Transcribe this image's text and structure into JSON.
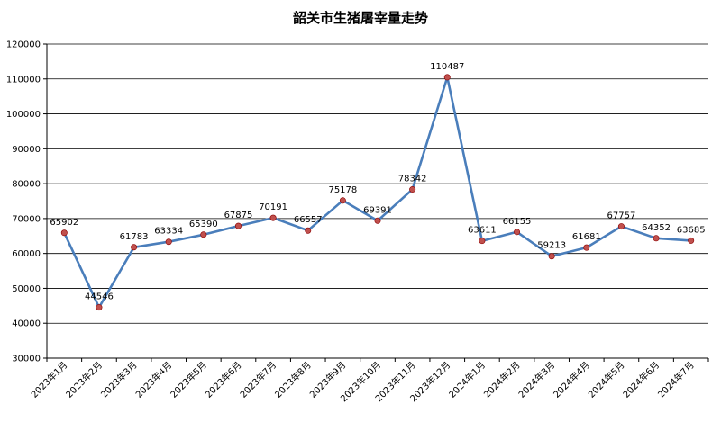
{
  "chart_data": {
    "type": "line",
    "title": "韶关市生猪屠宰量走势",
    "categories": [
      "2023年1月",
      "2023年2月",
      "2023年3月",
      "2023年4月",
      "2023年5月",
      "2023年6月",
      "2023年7月",
      "2023年8月",
      "2023年9月",
      "2023年10月",
      "2023年11月",
      "2023年12月",
      "2024年1月",
      "2024年2月",
      "2024年3月",
      "2024年4月",
      "2024年5月",
      "2024年6月",
      "2024年7月"
    ],
    "values": [
      65902,
      44546,
      61783,
      63334,
      65390,
      67875,
      70191,
      66557,
      75178,
      69391,
      78342,
      110487,
      63611,
      66155,
      59213,
      61681,
      67757,
      64352,
      63685
    ],
    "ylim": [
      30000,
      120000
    ],
    "ytick_step": 10000,
    "yticks": [
      "30000",
      "40000",
      "50000",
      "60000",
      "70000",
      "80000",
      "90000",
      "100000",
      "110000",
      "120000"
    ],
    "xlabel": "",
    "ylabel": "",
    "grid": true,
    "legend": "none",
    "colors": {
      "line": "#4a7ebb",
      "marker": "#c0504d"
    }
  }
}
